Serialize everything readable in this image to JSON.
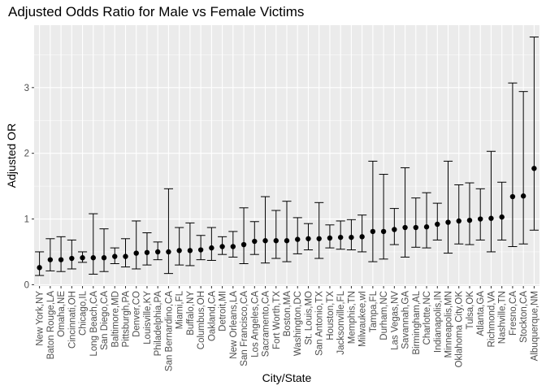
{
  "chart_data": {
    "type": "scatter",
    "title": "Adjusted Odds Ratio for Male vs Female Victims",
    "xlabel": "City/State",
    "ylabel": "Adjusted OR",
    "ylim": [
      -0.02,
      3.95
    ],
    "yticks": [
      0,
      1,
      2,
      3
    ],
    "grid": true,
    "legend": "none",
    "colors": {
      "panel": "#ebebeb",
      "grid_major": "#ffffff",
      "point": "#000000",
      "errorbar": "#000000",
      "tick_label": "#4d4d4d"
    },
    "points": [
      {
        "city": "New York,NY",
        "or": 0.26,
        "low": 0.14,
        "high": 0.5
      },
      {
        "city": "Baton Rouge,LA",
        "or": 0.38,
        "low": 0.21,
        "high": 0.7
      },
      {
        "city": "Omaha,NE",
        "or": 0.38,
        "low": 0.2,
        "high": 0.73
      },
      {
        "city": "Cincinnati,OH",
        "or": 0.4,
        "low": 0.24,
        "high": 0.68
      },
      {
        "city": "Chicago,IL",
        "or": 0.41,
        "low": 0.34,
        "high": 0.5
      },
      {
        "city": "Long Beach,CA",
        "or": 0.41,
        "low": 0.16,
        "high": 1.08
      },
      {
        "city": "San Diego,CA",
        "or": 0.41,
        "low": 0.2,
        "high": 0.85
      },
      {
        "city": "Baltimore,MD",
        "or": 0.43,
        "low": 0.32,
        "high": 0.56
      },
      {
        "city": "Pittsburgh,PA",
        "or": 0.43,
        "low": 0.27,
        "high": 0.7
      },
      {
        "city": "Denver,CO",
        "or": 0.48,
        "low": 0.24,
        "high": 0.97
      },
      {
        "city": "Louisville,KY",
        "or": 0.49,
        "low": 0.3,
        "high": 0.79
      },
      {
        "city": "Philadelphia,PA",
        "or": 0.5,
        "low": 0.38,
        "high": 0.65
      },
      {
        "city": "San Bernardino,CA",
        "or": 0.5,
        "low": 0.17,
        "high": 1.46
      },
      {
        "city": "Miami,FL",
        "or": 0.52,
        "low": 0.3,
        "high": 0.87
      },
      {
        "city": "Buffalo,NY",
        "or": 0.52,
        "low": 0.29,
        "high": 0.94
      },
      {
        "city": "Columbus,OH",
        "or": 0.53,
        "low": 0.38,
        "high": 0.75
      },
      {
        "city": "Oakland,CA",
        "or": 0.56,
        "low": 0.37,
        "high": 0.87
      },
      {
        "city": "Detroit,MI",
        "or": 0.58,
        "low": 0.46,
        "high": 0.73
      },
      {
        "city": "New Orleans,LA",
        "or": 0.58,
        "low": 0.42,
        "high": 0.81
      },
      {
        "city": "San Francisco,CA",
        "or": 0.61,
        "low": 0.32,
        "high": 1.17
      },
      {
        "city": "Los Angeles,CA",
        "or": 0.66,
        "low": 0.46,
        "high": 0.96
      },
      {
        "city": "Sacramento,CA",
        "or": 0.67,
        "low": 0.33,
        "high": 1.34
      },
      {
        "city": "Fort Worth,TX",
        "or": 0.67,
        "low": 0.4,
        "high": 1.13
      },
      {
        "city": "Boston,MA",
        "or": 0.67,
        "low": 0.35,
        "high": 1.27
      },
      {
        "city": "Washington,DC",
        "or": 0.69,
        "low": 0.47,
        "high": 1.02
      },
      {
        "city": "St. Louis,MO",
        "or": 0.7,
        "low": 0.53,
        "high": 0.93
      },
      {
        "city": "San Antonio,TX",
        "or": 0.7,
        "low": 0.4,
        "high": 1.25
      },
      {
        "city": "Houston,TX",
        "or": 0.71,
        "low": 0.56,
        "high": 0.91
      },
      {
        "city": "Jacksonville,FL",
        "or": 0.72,
        "low": 0.54,
        "high": 0.97
      },
      {
        "city": "Memphis,TN",
        "or": 0.72,
        "low": 0.53,
        "high": 0.99
      },
      {
        "city": "Milwaukee,wI",
        "or": 0.73,
        "low": 0.5,
        "high": 1.06
      },
      {
        "city": "Tampa,FL",
        "or": 0.81,
        "low": 0.35,
        "high": 1.88
      },
      {
        "city": "Durham,NC",
        "or": 0.81,
        "low": 0.39,
        "high": 1.68
      },
      {
        "city": "Las Vegas,NV",
        "or": 0.84,
        "low": 0.61,
        "high": 1.16
      },
      {
        "city": "Savannah,GA",
        "or": 0.87,
        "low": 0.42,
        "high": 1.78
      },
      {
        "city": "Birmingham,AL",
        "or": 0.87,
        "low": 0.57,
        "high": 1.32
      },
      {
        "city": "Charlotte,NC",
        "or": 0.88,
        "low": 0.56,
        "high": 1.4
      },
      {
        "city": "Indianapolis,IN",
        "or": 0.92,
        "low": 0.68,
        "high": 1.24
      },
      {
        "city": "Minneapolis,MN",
        "or": 0.95,
        "low": 0.48,
        "high": 1.88
      },
      {
        "city": "Oklahoma City,OK",
        "or": 0.97,
        "low": 0.62,
        "high": 1.52
      },
      {
        "city": "Tulsa,OK",
        "or": 0.98,
        "low": 0.61,
        "high": 1.55
      },
      {
        "city": "Atlanta,GA",
        "or": 1.0,
        "low": 0.68,
        "high": 1.46
      },
      {
        "city": "Richmond,VA",
        "or": 1.01,
        "low": 0.5,
        "high": 2.03
      },
      {
        "city": "Nashville,TN",
        "or": 1.03,
        "low": 0.68,
        "high": 1.56
      },
      {
        "city": "Fresno,CA",
        "or": 1.34,
        "low": 0.58,
        "high": 3.07
      },
      {
        "city": "Stockton,CA",
        "or": 1.35,
        "low": 0.62,
        "high": 2.94
      },
      {
        "city": "Albuquerque,NM",
        "or": 1.77,
        "low": 0.83,
        "high": 3.77
      }
    ]
  }
}
